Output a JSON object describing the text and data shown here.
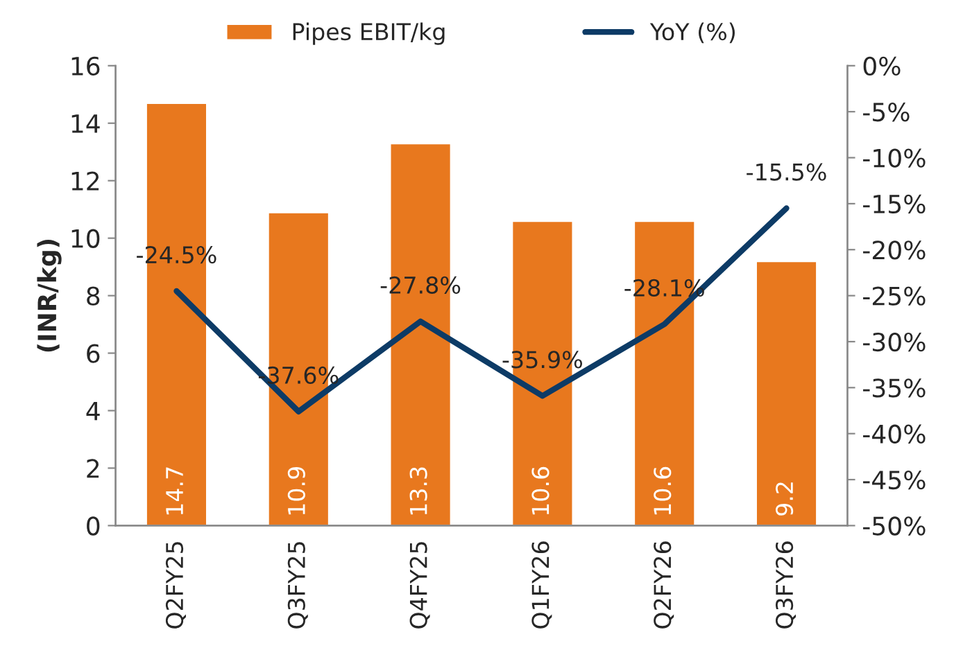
{
  "chart_data": {
    "type": "bar",
    "ylabel": "(INR/kg)",
    "categories": [
      "Q2FY25",
      "Q3FY25",
      "Q4FY25",
      "Q1FY26",
      "Q2FY26",
      "Q3FY26"
    ],
    "series": [
      {
        "name": "Pipes EBIT/kg",
        "color": "#e8781e",
        "values": [
          14.7,
          10.9,
          13.3,
          10.6,
          10.6,
          9.2
        ],
        "value_labels": [
          "14.7",
          "10.9",
          "13.3",
          "10.6",
          "10.6",
          "9.2"
        ]
      },
      {
        "name": "YoY (%)",
        "type": "line",
        "axis": "y2",
        "color": "#0d3b66",
        "values": [
          -24.5,
          -37.6,
          -27.8,
          -35.9,
          -28.1,
          -15.5
        ],
        "value_labels": [
          "-24.5%",
          "-37.6%",
          "-27.8%",
          "-35.9%",
          "-28.1%",
          "-15.5%"
        ]
      }
    ],
    "ylim": [
      0,
      16
    ],
    "yticks": [
      0,
      2,
      4,
      6,
      8,
      10,
      12,
      14,
      16
    ],
    "y2lim": [
      -50,
      0
    ],
    "y2ticks": [
      {
        "value": 0,
        "label": "0%"
      },
      {
        "value": -5,
        "label": "-5%"
      },
      {
        "value": -10,
        "label": "-10%"
      },
      {
        "value": -15,
        "label": "-15%"
      },
      {
        "value": -20,
        "label": "-20%"
      },
      {
        "value": -25,
        "label": "-25%"
      },
      {
        "value": -30,
        "label": "-30%"
      },
      {
        "value": -35,
        "label": "-35%"
      },
      {
        "value": -40,
        "label": "-40%"
      },
      {
        "value": -45,
        "label": "-45%"
      },
      {
        "value": -50,
        "label": "-50%"
      }
    ],
    "legend": "top",
    "grid": false,
    "marker": "none",
    "line_style": "solid"
  }
}
